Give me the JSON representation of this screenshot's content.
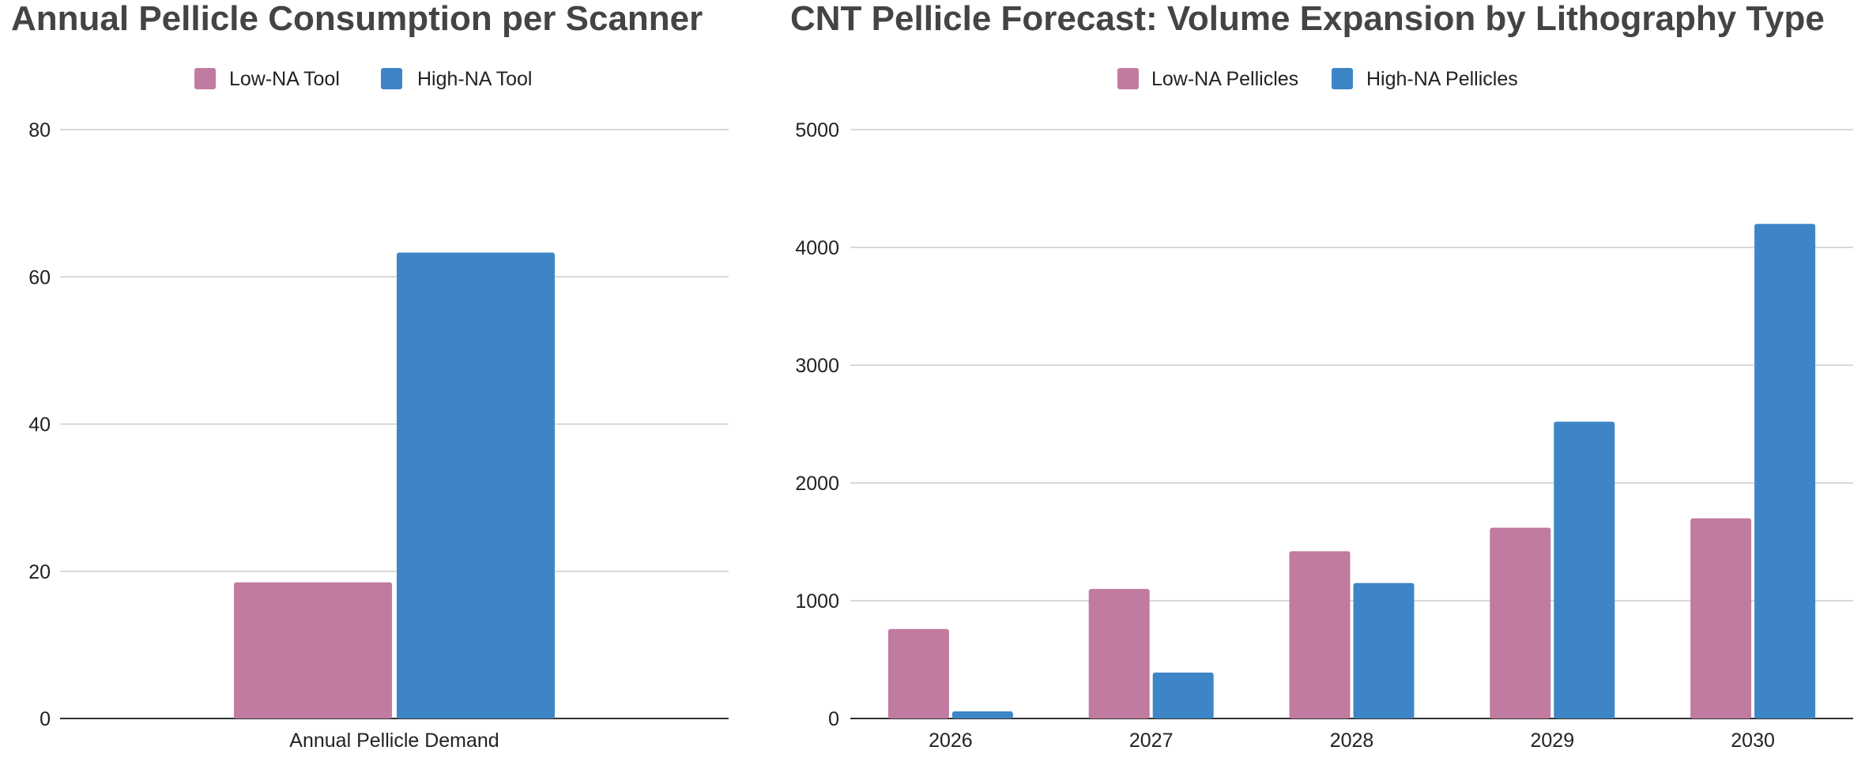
{
  "colors": {
    "low_na": "#C27BA0",
    "high_na": "#3D85C6"
  },
  "chart_data": [
    {
      "type": "bar",
      "title": "Annual Pellicle Consumption per Scanner",
      "categories": [
        "Annual Pellicle Demand"
      ],
      "series": [
        {
          "name": "Low-NA Tool",
          "values": [
            18.5
          ]
        },
        {
          "name": "High-NA Tool",
          "values": [
            63.3
          ]
        }
      ],
      "ylim": [
        0,
        80
      ],
      "yticks": [
        0,
        20,
        40,
        60,
        80
      ],
      "grid": true,
      "legend": "top-center"
    },
    {
      "type": "bar",
      "title": "CNT Pellicle Forecast: Volume Expansion by Lithography Type",
      "categories": [
        "2026",
        "2027",
        "2028",
        "2029",
        "2030"
      ],
      "series": [
        {
          "name": "Low-NA Pellicles",
          "values": [
            760,
            1100,
            1420,
            1620,
            1700
          ]
        },
        {
          "name": "High-NA Pellicles",
          "values": [
            60,
            390,
            1150,
            2520,
            4200
          ]
        }
      ],
      "ylim": [
        0,
        5000
      ],
      "yticks": [
        0,
        1000,
        2000,
        3000,
        4000,
        5000
      ],
      "grid": true,
      "legend": "top-center"
    }
  ]
}
